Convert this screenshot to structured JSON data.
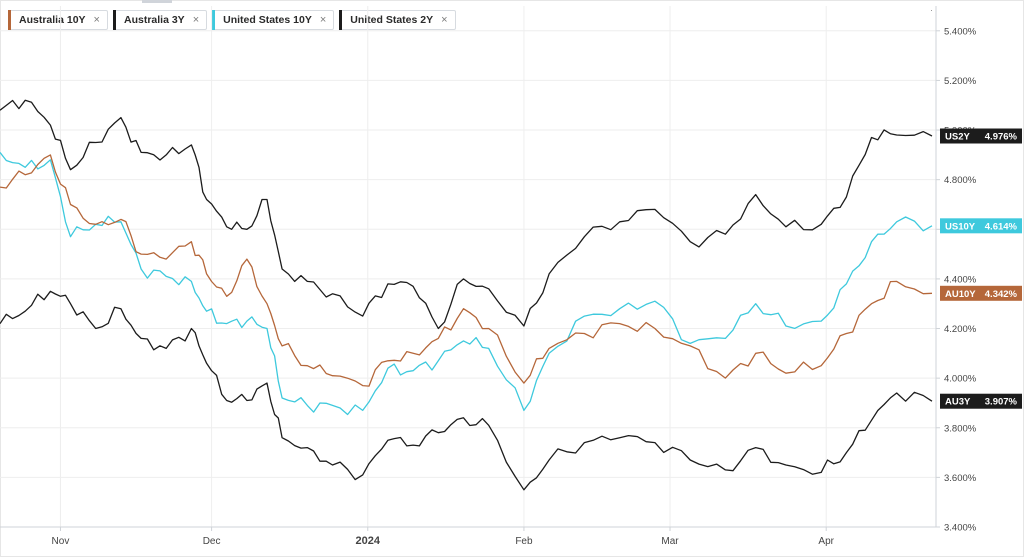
{
  "legend": [
    {
      "label": "Australia 10Y",
      "color": "#b5673a",
      "close": "×"
    },
    {
      "label": "Australia 3Y",
      "color": "#1c1c1c",
      "close": "×"
    },
    {
      "label": "United States 10Y",
      "color": "#3ec9dd",
      "close": "×"
    },
    {
      "label": "United States 2Y",
      "color": "#1c1c1c",
      "close": "×"
    }
  ],
  "chart_data": {
    "type": "line",
    "title": "",
    "xlabel": "",
    "ylabel": "",
    "ylim": [
      3.4,
      5.5
    ],
    "yticks": [
      3.4,
      3.6,
      3.8,
      4.0,
      4.2,
      4.4,
      4.6,
      4.8,
      5.0,
      5.2,
      5.4
    ],
    "ytick_labels": [
      "3.400%",
      "3.600%",
      "3.800%",
      "4.000%",
      "4.200%",
      "4.400%",
      "4.600%",
      "4.800%",
      "5.000%",
      "5.200%",
      "5.400%"
    ],
    "x_period": [
      "2023-10-20",
      "2024-04-22"
    ],
    "xticks": [
      {
        "date": "2023-11-01",
        "label": "Nov",
        "bold": false
      },
      {
        "date": "2023-12-01",
        "label": "Dec",
        "bold": false
      },
      {
        "date": "2024-01-01",
        "label": "2024",
        "bold": true
      },
      {
        "date": "2024-02-01",
        "label": "Feb",
        "bold": false
      },
      {
        "date": "2024-03-01",
        "label": "Mar",
        "bold": false
      },
      {
        "date": "2024-04-01",
        "label": "Apr",
        "bold": false
      }
    ],
    "grid": true,
    "legend_position": "top-left",
    "series": [
      {
        "name": "United States 2Y",
        "tag": "US2Y",
        "last_value": "4.976%",
        "color": "#1c1c1c",
        "anchors": [
          [
            "2023-10-20",
            5.08
          ],
          [
            "2023-10-25",
            5.12
          ],
          [
            "2023-10-30",
            5.02
          ],
          [
            "2023-11-03",
            4.84
          ],
          [
            "2023-11-08",
            4.95
          ],
          [
            "2023-11-13",
            5.05
          ],
          [
            "2023-11-17",
            4.91
          ],
          [
            "2023-11-22",
            4.9
          ],
          [
            "2023-11-27",
            4.94
          ],
          [
            "2023-11-30",
            4.72
          ],
          [
            "2023-12-04",
            4.61
          ],
          [
            "2023-12-08",
            4.6
          ],
          [
            "2023-12-12",
            4.72
          ],
          [
            "2023-12-15",
            4.44
          ],
          [
            "2023-12-20",
            4.39
          ],
          [
            "2023-12-25",
            4.34
          ],
          [
            "2023-12-31",
            4.25
          ],
          [
            "2024-01-05",
            4.38
          ],
          [
            "2024-01-10",
            4.37
          ],
          [
            "2024-01-15",
            4.2
          ],
          [
            "2024-01-20",
            4.4
          ],
          [
            "2024-01-25",
            4.36
          ],
          [
            "2024-02-01",
            4.21
          ],
          [
            "2024-02-06",
            4.42
          ],
          [
            "2024-02-13",
            4.57
          ],
          [
            "2024-02-20",
            4.63
          ],
          [
            "2024-02-27",
            4.68
          ],
          [
            "2024-03-05",
            4.55
          ],
          [
            "2024-03-12",
            4.58
          ],
          [
            "2024-03-18",
            4.74
          ],
          [
            "2024-03-24",
            4.61
          ],
          [
            "2024-03-31",
            4.62
          ],
          [
            "2024-04-05",
            4.73
          ],
          [
            "2024-04-10",
            4.97
          ],
          [
            "2024-04-15",
            4.98
          ],
          [
            "2024-04-22",
            4.976
          ]
        ]
      },
      {
        "name": "United States 10Y",
        "tag": "US10Y",
        "last_value": "4.614%",
        "color": "#3ec9dd",
        "anchors": [
          [
            "2023-10-20",
            4.91
          ],
          [
            "2023-10-25",
            4.85
          ],
          [
            "2023-10-30",
            4.88
          ],
          [
            "2023-11-03",
            4.57
          ],
          [
            "2023-11-08",
            4.62
          ],
          [
            "2023-11-13",
            4.63
          ],
          [
            "2023-11-17",
            4.44
          ],
          [
            "2023-11-22",
            4.41
          ],
          [
            "2023-11-27",
            4.39
          ],
          [
            "2023-11-30",
            4.27
          ],
          [
            "2023-12-04",
            4.22
          ],
          [
            "2023-12-08",
            4.23
          ],
          [
            "2023-12-12",
            4.2
          ],
          [
            "2023-12-15",
            3.92
          ],
          [
            "2023-12-20",
            3.89
          ],
          [
            "2023-12-25",
            3.89
          ],
          [
            "2023-12-31",
            3.87
          ],
          [
            "2024-01-05",
            4.04
          ],
          [
            "2024-01-10",
            4.03
          ],
          [
            "2024-01-15",
            4.07
          ],
          [
            "2024-01-20",
            4.15
          ],
          [
            "2024-01-25",
            4.12
          ],
          [
            "2024-02-01",
            3.87
          ],
          [
            "2024-02-06",
            4.1
          ],
          [
            "2024-02-13",
            4.25
          ],
          [
            "2024-02-20",
            4.28
          ],
          [
            "2024-02-27",
            4.31
          ],
          [
            "2024-03-05",
            4.14
          ],
          [
            "2024-03-12",
            4.16
          ],
          [
            "2024-03-18",
            4.3
          ],
          [
            "2024-03-24",
            4.21
          ],
          [
            "2024-03-31",
            4.23
          ],
          [
            "2024-04-05",
            4.38
          ],
          [
            "2024-04-10",
            4.55
          ],
          [
            "2024-04-15",
            4.63
          ],
          [
            "2024-04-22",
            4.614
          ]
        ]
      },
      {
        "name": "Australia 10Y",
        "tag": "AU10Y",
        "last_value": "4.342%",
        "color": "#b5673a",
        "anchors": [
          [
            "2023-10-20",
            4.77
          ],
          [
            "2023-10-25",
            4.82
          ],
          [
            "2023-10-30",
            4.9
          ],
          [
            "2023-11-03",
            4.7
          ],
          [
            "2023-11-08",
            4.62
          ],
          [
            "2023-11-13",
            4.64
          ],
          [
            "2023-11-17",
            4.5
          ],
          [
            "2023-11-22",
            4.48
          ],
          [
            "2023-11-27",
            4.55
          ],
          [
            "2023-11-30",
            4.42
          ],
          [
            "2023-12-04",
            4.33
          ],
          [
            "2023-12-08",
            4.48
          ],
          [
            "2023-12-12",
            4.3
          ],
          [
            "2023-12-15",
            4.13
          ],
          [
            "2023-12-20",
            4.05
          ],
          [
            "2023-12-25",
            4.01
          ],
          [
            "2023-12-31",
            3.97
          ],
          [
            "2024-01-05",
            4.07
          ],
          [
            "2024-01-10",
            4.1
          ],
          [
            "2024-01-15",
            4.16
          ],
          [
            "2024-01-20",
            4.28
          ],
          [
            "2024-01-25",
            4.2
          ],
          [
            "2024-02-01",
            3.98
          ],
          [
            "2024-02-06",
            4.12
          ],
          [
            "2024-02-13",
            4.18
          ],
          [
            "2024-02-20",
            4.22
          ],
          [
            "2024-02-27",
            4.2
          ],
          [
            "2024-03-05",
            4.13
          ],
          [
            "2024-03-12",
            4.0
          ],
          [
            "2024-03-18",
            4.1
          ],
          [
            "2024-03-24",
            4.02
          ],
          [
            "2024-03-31",
            4.05
          ],
          [
            "2024-04-05",
            4.18
          ],
          [
            "2024-04-10",
            4.3
          ],
          [
            "2024-04-15",
            4.39
          ],
          [
            "2024-04-22",
            4.342
          ]
        ]
      },
      {
        "name": "Australia 3Y",
        "tag": "AU3Y",
        "last_value": "3.907%",
        "color": "#1c1c1c",
        "anchors": [
          [
            "2023-10-20",
            4.22
          ],
          [
            "2023-10-25",
            4.27
          ],
          [
            "2023-10-30",
            4.35
          ],
          [
            "2023-11-03",
            4.3
          ],
          [
            "2023-11-08",
            4.2
          ],
          [
            "2023-11-13",
            4.28
          ],
          [
            "2023-11-17",
            4.16
          ],
          [
            "2023-11-22",
            4.12
          ],
          [
            "2023-11-27",
            4.2
          ],
          [
            "2023-11-30",
            4.06
          ],
          [
            "2023-12-04",
            3.91
          ],
          [
            "2023-12-08",
            3.91
          ],
          [
            "2023-12-12",
            3.98
          ],
          [
            "2023-12-15",
            3.76
          ],
          [
            "2023-12-20",
            3.72
          ],
          [
            "2023-12-25",
            3.65
          ],
          [
            "2023-12-31",
            3.61
          ],
          [
            "2024-01-05",
            3.75
          ],
          [
            "2024-01-10",
            3.73
          ],
          [
            "2024-01-15",
            3.78
          ],
          [
            "2024-01-20",
            3.84
          ],
          [
            "2024-01-25",
            3.81
          ],
          [
            "2024-02-01",
            3.55
          ],
          [
            "2024-02-06",
            3.67
          ],
          [
            "2024-02-13",
            3.74
          ],
          [
            "2024-02-20",
            3.76
          ],
          [
            "2024-02-27",
            3.74
          ],
          [
            "2024-03-05",
            3.67
          ],
          [
            "2024-03-12",
            3.63
          ],
          [
            "2024-03-18",
            3.72
          ],
          [
            "2024-03-24",
            3.65
          ],
          [
            "2024-03-31",
            3.62
          ],
          [
            "2024-04-05",
            3.7
          ],
          [
            "2024-04-10",
            3.83
          ],
          [
            "2024-04-15",
            3.94
          ],
          [
            "2024-04-22",
            3.907
          ]
        ]
      }
    ]
  }
}
